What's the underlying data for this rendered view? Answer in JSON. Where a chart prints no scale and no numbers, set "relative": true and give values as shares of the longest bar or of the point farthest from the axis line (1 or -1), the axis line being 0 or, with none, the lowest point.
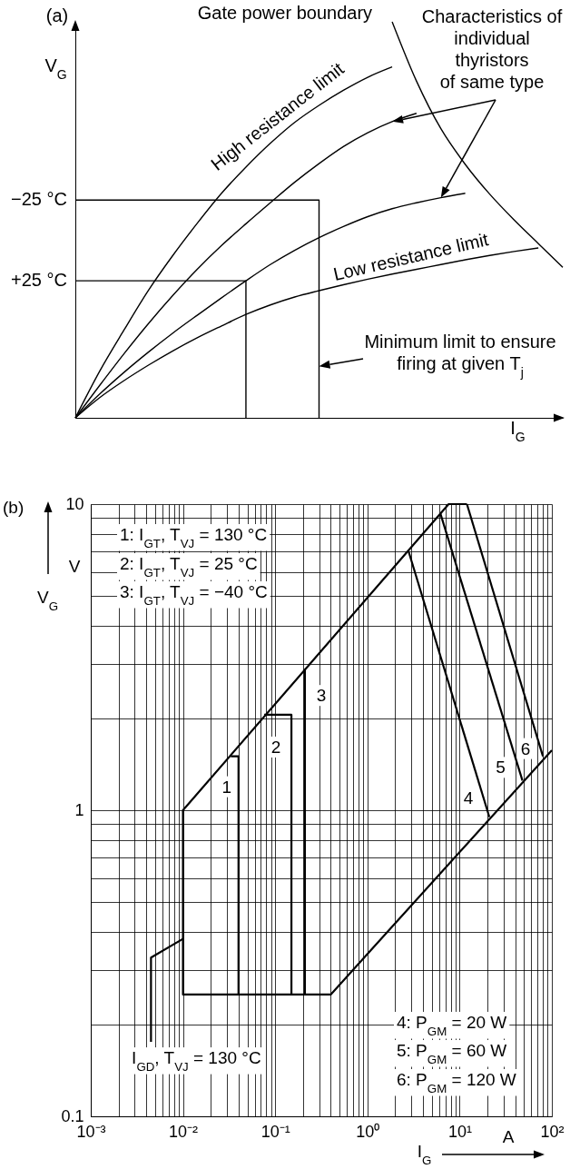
{
  "chart_data": [
    {
      "type": "line",
      "relative": true,
      "xlabel": "I$_{G}$",
      "ylabel": "V$_{G}$",
      "categories": [
        null,
        null,
        null,
        null,
        null,
        null,
        null,
        null,
        null,
        null,
        null,
        null,
        null,
        null,
        null,
        null,
        null,
        null,
        null,
        null,
        null
      ],
      "series": [
        {
          "name": "High resistance limit",
          "color": "#000000",
          "values": [
            0,
            0.118,
            0.222,
            0.322,
            0.41,
            0.491,
            0.567,
            0.633,
            0.693,
            0.746,
            0.789,
            0.827,
            0.86,
            0.886,
            null,
            null,
            null,
            null,
            null,
            null,
            null
          ]
        },
        {
          "color": "#000000",
          "values": [
            0,
            0.082,
            0.162,
            0.238,
            0.309,
            0.375,
            0.435,
            0.49,
            0.543,
            0.595,
            0.642,
            0.685,
            0.72,
            0.748,
            0.769,
            null,
            null,
            null,
            null,
            null,
            null
          ]
        },
        {
          "color": "#000000",
          "values": [
            0,
            0.06,
            0.115,
            0.166,
            0.214,
            0.259,
            0.303,
            0.346,
            0.387,
            0.423,
            0.455,
            0.483,
            0.508,
            0.528,
            0.543,
            0.556,
            0.567,
            null,
            null,
            null,
            null
          ]
        },
        {
          "name": "Low resistance limit",
          "color": "#000000",
          "values": [
            0,
            0.051,
            0.094,
            0.133,
            0.169,
            0.202,
            0.232,
            0.261,
            0.285,
            0.305,
            0.321,
            0.336,
            0.35,
            0.363,
            0.375,
            0.387,
            0.399,
            0.41,
            0.42,
            0.429,
            null
          ]
        },
        {
          "name": "Gate power boundary",
          "color": "#000000",
          "values": [
            null,
            null,
            null,
            null,
            null,
            null,
            null,
            null,
            null,
            null,
            null,
            null,
            null,
            1,
            0.85,
            0.73,
            0.64,
            0.565,
            0.5,
            0.44,
            0.38
          ]
        },
        {
          "name": "−25 °C",
          "type": "step",
          "color": "#000000",
          "values": [
            0.55,
            0.55,
            0.55,
            0.55,
            0.55,
            0.55,
            0.55,
            0.55,
            0.55,
            0.55,
            0,
            null,
            null,
            null,
            null,
            null,
            null,
            null,
            null,
            null,
            null
          ]
        },
        {
          "name": "+25 °C",
          "type": "step",
          "color": "#000000",
          "values": [
            0.346,
            0.346,
            0.346,
            0.346,
            0.346,
            0.346,
            0.346,
            0,
            null,
            null,
            null,
            null,
            null,
            null,
            null,
            null,
            null,
            null,
            null,
            null,
            null
          ]
        }
      ],
      "annotations": [
        "(a)",
        "Characteristics of\nindividual\nthyristors\nof same type",
        "Minimum limit to ensure\nfiring at given T$_{j}$"
      ]
    },
    {
      "type": "line",
      "log": "xy",
      "grid": true,
      "xlabel": "I$_{G}$",
      "ylabel": "V$_{G}$",
      "xlim": [
        0.001,
        100
      ],
      "ylim": [
        0.1,
        10
      ],
      "xticks": [
        {
          "value": 0.001,
          "label": "10⁻³"
        },
        {
          "value": 0.002,
          "label": null
        },
        {
          "value": 0.003,
          "label": null
        },
        {
          "value": 0.004,
          "label": null
        },
        {
          "value": 0.005,
          "label": null
        },
        {
          "value": 0.006,
          "label": null
        },
        {
          "value": 0.007,
          "label": null
        },
        {
          "value": 0.008,
          "label": null
        },
        {
          "value": 0.009,
          "label": null
        },
        {
          "value": 0.01,
          "label": "10⁻²"
        },
        {
          "value": 0.02,
          "label": null
        },
        {
          "value": 0.03,
          "label": null
        },
        {
          "value": 0.04,
          "label": null
        },
        {
          "value": 0.05,
          "label": null
        },
        {
          "value": 0.06,
          "label": null
        },
        {
          "value": 0.07,
          "label": null
        },
        {
          "value": 0.08,
          "label": null
        },
        {
          "value": 0.09,
          "label": null
        },
        {
          "value": 0.1,
          "label": "10⁻¹"
        },
        {
          "value": 0.2,
          "label": null
        },
        {
          "value": 0.3,
          "label": null
        },
        {
          "value": 0.4,
          "label": null
        },
        {
          "value": 0.5,
          "label": null
        },
        {
          "value": 0.6,
          "label": null
        },
        {
          "value": 0.7,
          "label": null
        },
        {
          "value": 0.8,
          "label": null
        },
        {
          "value": 0.9,
          "label": null
        },
        {
          "value": 1,
          "label": "10⁰"
        },
        {
          "value": 2,
          "label": null
        },
        {
          "value": 3,
          "label": null
        },
        {
          "value": 4,
          "label": null
        },
        {
          "value": 5,
          "label": null
        },
        {
          "value": 6,
          "label": null
        },
        {
          "value": 7,
          "label": null
        },
        {
          "value": 8,
          "label": null
        },
        {
          "value": 9,
          "label": null
        },
        {
          "value": 10,
          "label": "10¹"
        },
        {
          "value": 20,
          "label": null
        },
        {
          "value": 30,
          "label": null
        },
        {
          "value": 40,
          "label": null
        },
        {
          "value": 50,
          "label": null
        },
        {
          "value": 60,
          "label": null
        },
        {
          "value": 70,
          "label": null
        },
        {
          "value": 80,
          "label": null
        },
        {
          "value": 90,
          "label": null
        },
        {
          "value": 100,
          "label": "10²"
        }
      ],
      "yticks": [
        0.1,
        {
          "value": 0.2,
          "label": null
        },
        {
          "value": 0.3,
          "label": null
        },
        {
          "value": 0.4,
          "label": null
        },
        {
          "value": 0.5,
          "label": null
        },
        {
          "value": 0.6,
          "label": null
        },
        {
          "value": 0.7,
          "label": null
        },
        {
          "value": 0.8,
          "label": null
        },
        {
          "value": 0.9,
          "label": null
        },
        1,
        {
          "value": 2,
          "label": null
        },
        {
          "value": 3,
          "label": null
        },
        {
          "value": 4,
          "label": null
        },
        {
          "value": 5,
          "label": null
        },
        {
          "value": 6,
          "label": null
        },
        {
          "value": 7,
          "label": null
        },
        {
          "value": 8,
          "label": null
        },
        {
          "value": 9,
          "label": null
        },
        10
      ],
      "series": [
        {
          "name": "I$_{GD}$, T$_{VJ}$ = 130 °C",
          "color": "#000000",
          "x": [
            0.0045,
            0.0045,
            0.01
          ],
          "values": [
            0.175,
            0.33,
            0.38
          ]
        },
        {
          "color": "#000000",
          "x": [
            100,
            0.4,
            0.01,
            0.01,
            7.6,
            12
          ],
          "values": [
            1.57,
            0.25,
            0.25,
            1,
            10,
            10
          ]
        },
        {
          "name": "1",
          "color": "#000000",
          "x": [
            0.033,
            0.04,
            0.04
          ],
          "values": [
            1.5,
            1.5,
            0.25
          ]
        },
        {
          "name": "2",
          "color": "#000000",
          "x": [
            0.076,
            0.15,
            0.15
          ],
          "values": [
            2.05,
            2.05,
            0.25
          ]
        },
        {
          "name": "3",
          "color": "#000000",
          "x": [
            0.21,
            0.21
          ],
          "values": [
            2.9,
            0.25
          ]
        },
        {
          "name": "4",
          "color": "#000000",
          "x": [
            2.8,
            21
          ],
          "values": [
            7,
            0.95
          ]
        },
        {
          "name": "5",
          "color": "#000000",
          "x": [
            6.2,
            48
          ],
          "values": [
            9.3,
            1.25
          ]
        },
        {
          "name": "6",
          "color": "#000000",
          "x": [
            12,
            80
          ],
          "values": [
            10,
            1.5
          ]
        }
      ],
      "annotations": [
        "(b)",
        "1: I$_{GT}$, T$_{VJ}$ = 130 °C",
        "2: I$_{GT}$, T$_{VJ}$ = 25 °C",
        "3: I$_{GT}$, T$_{VJ}$ = −40 °C",
        "4: P$_{GM}$ = 20 W",
        "5: P$_{GM}$ = 60 W",
        "6: P$_{GM}$ = 120 W",
        "V",
        "A"
      ]
    }
  ]
}
